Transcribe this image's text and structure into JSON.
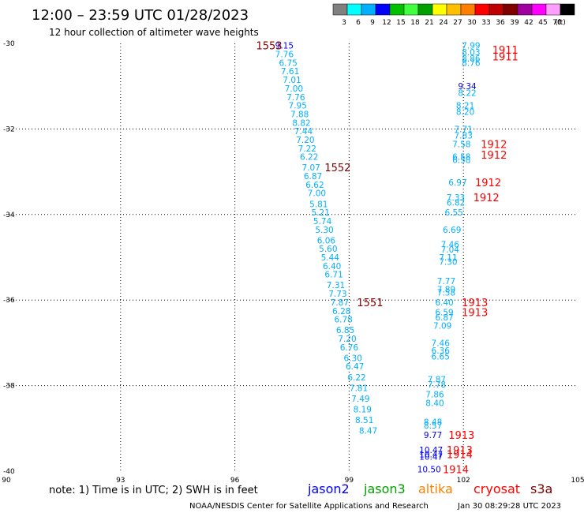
{
  "header": {
    "title": "12:00 – 23:59 UTC 01/28/2023",
    "subtitle": "12 hour collection of altimeter wave heights"
  },
  "colorbar": {
    "colors": [
      "#808080",
      "#00ffff",
      "#00b0ff",
      "#0000ff",
      "#00c000",
      "#40ff40",
      "#00a000",
      "#ffff00",
      "#ffc000",
      "#ff8000",
      "#ff0000",
      "#c00000",
      "#800000",
      "#a000a0",
      "#ff00ff",
      "#ffa0ff",
      "#000000"
    ],
    "labels": [
      "3",
      "6",
      "9",
      "12",
      "15",
      "18",
      "21",
      "24",
      "27",
      "30",
      "33",
      "36",
      "39",
      "42",
      "45",
      "70",
      "(ft)"
    ]
  },
  "footer": {
    "note": "note:  1) Time is in UTC; 2) SWH is in feet",
    "credit": "NOAA/NESDIS Center for Satellite Applications and Research",
    "timestamp": "Jan 30 08:29:28 UTC 2023"
  },
  "legend": [
    {
      "label": "jason2",
      "color": "#0000ff"
    },
    {
      "label": "jason3",
      "color": "#00a000"
    },
    {
      "label": "altika",
      "color": "#ff8000"
    },
    {
      "label": "cryosat",
      "color": "#ff0000"
    },
    {
      "label": "s3a",
      "color": "#800000"
    }
  ],
  "chart_data": {
    "type": "scatter",
    "xlim": [
      90,
      105
    ],
    "ylim": [
      -40,
      -30
    ],
    "x_ticks": [
      "90",
      "93",
      "96",
      "99",
      "102",
      "105"
    ],
    "y_ticks": [
      "-30",
      "-32",
      "-34",
      "-36",
      "-38",
      "-40"
    ],
    "x_tick_values": [
      90,
      93,
      96,
      99,
      102,
      105
    ],
    "y_tick_values": [
      -30,
      -32,
      -34,
      -36,
      -38,
      -40
    ],
    "grid": true,
    "value_colors": {
      "low": "#00b0ff",
      "mid": "#0000ff"
    },
    "points": [
      {
        "x": 97.3,
        "y": -30.05,
        "v": "9.15",
        "c": "#0000ff"
      },
      {
        "x": 97.3,
        "y": -30.25,
        "v": "7.76",
        "c": "#00b0ff"
      },
      {
        "x": 97.4,
        "y": -30.45,
        "v": "6.75",
        "c": "#00b0ff"
      },
      {
        "x": 97.45,
        "y": -30.65,
        "v": "7.61",
        "c": "#00b0ff"
      },
      {
        "x": 97.5,
        "y": -30.85,
        "v": "7.01",
        "c": "#00b0ff"
      },
      {
        "x": 97.55,
        "y": -31.05,
        "v": "7.00",
        "c": "#00b0ff"
      },
      {
        "x": 97.6,
        "y": -31.25,
        "v": "7.76",
        "c": "#00b0ff"
      },
      {
        "x": 97.65,
        "y": -31.45,
        "v": "7.95",
        "c": "#00b0ff"
      },
      {
        "x": 97.7,
        "y": -31.65,
        "v": "7.88",
        "c": "#00b0ff"
      },
      {
        "x": 97.75,
        "y": -31.85,
        "v": "8.82",
        "c": "#00b0ff"
      },
      {
        "x": 97.8,
        "y": -32.05,
        "v": "7.44",
        "c": "#00b0ff"
      },
      {
        "x": 97.85,
        "y": -32.25,
        "v": "7.20",
        "c": "#00b0ff"
      },
      {
        "x": 97.9,
        "y": -32.45,
        "v": "7.22",
        "c": "#00b0ff"
      },
      {
        "x": 97.95,
        "y": -32.65,
        "v": "6.22",
        "c": "#00b0ff"
      },
      {
        "x": 98.0,
        "y": -32.9,
        "v": "7.07",
        "c": "#00b0ff"
      },
      {
        "x": 98.05,
        "y": -33.1,
        "v": "6.87",
        "c": "#00b0ff"
      },
      {
        "x": 98.1,
        "y": -33.3,
        "v": "6.62",
        "c": "#00b0ff"
      },
      {
        "x": 98.15,
        "y": -33.5,
        "v": "7.00",
        "c": "#00b0ff"
      },
      {
        "x": 98.2,
        "y": -33.75,
        "v": "5.81",
        "c": "#00b0ff"
      },
      {
        "x": 98.25,
        "y": -33.95,
        "v": "5.21",
        "c": "#00b0ff"
      },
      {
        "x": 98.3,
        "y": -34.15,
        "v": "5.74",
        "c": "#00b0ff"
      },
      {
        "x": 98.35,
        "y": -34.35,
        "v": "5.30",
        "c": "#00b0ff"
      },
      {
        "x": 98.4,
        "y": -34.6,
        "v": "6.06",
        "c": "#00b0ff"
      },
      {
        "x": 98.45,
        "y": -34.8,
        "v": "5.60",
        "c": "#00b0ff"
      },
      {
        "x": 98.5,
        "y": -35.0,
        "v": "5.44",
        "c": "#00b0ff"
      },
      {
        "x": 98.55,
        "y": -35.2,
        "v": "6.40",
        "c": "#00b0ff"
      },
      {
        "x": 98.6,
        "y": -35.4,
        "v": "6.71",
        "c": "#00b0ff"
      },
      {
        "x": 98.65,
        "y": -35.65,
        "v": "7.31",
        "c": "#00b0ff"
      },
      {
        "x": 98.7,
        "y": -35.85,
        "v": "7.73",
        "c": "#00b0ff"
      },
      {
        "x": 98.75,
        "y": -36.05,
        "v": "7.87",
        "c": "#00b0ff"
      },
      {
        "x": 98.8,
        "y": -36.25,
        "v": "6.28",
        "c": "#00b0ff"
      },
      {
        "x": 98.85,
        "y": -36.45,
        "v": "6.78",
        "c": "#00b0ff"
      },
      {
        "x": 98.9,
        "y": -36.7,
        "v": "6.85",
        "c": "#00b0ff"
      },
      {
        "x": 98.95,
        "y": -36.9,
        "v": "7.20",
        "c": "#00b0ff"
      },
      {
        "x": 99.0,
        "y": -37.1,
        "v": "6.76",
        "c": "#00b0ff"
      },
      {
        "x": 99.1,
        "y": -37.35,
        "v": "6.30",
        "c": "#00b0ff"
      },
      {
        "x": 99.15,
        "y": -37.55,
        "v": "6.47",
        "c": "#00b0ff"
      },
      {
        "x": 99.2,
        "y": -37.8,
        "v": "6.22",
        "c": "#00b0ff"
      },
      {
        "x": 99.25,
        "y": -38.05,
        "v": "7.81",
        "c": "#00b0ff"
      },
      {
        "x": 99.3,
        "y": -38.3,
        "v": "7.49",
        "c": "#00b0ff"
      },
      {
        "x": 99.35,
        "y": -38.55,
        "v": "8.19",
        "c": "#00b0ff"
      },
      {
        "x": 99.4,
        "y": -38.8,
        "v": "8.51",
        "c": "#00b0ff"
      },
      {
        "x": 99.5,
        "y": -39.05,
        "v": "8.47",
        "c": "#00b0ff"
      },
      {
        "x": 102.2,
        "y": -30.05,
        "v": "7.99",
        "c": "#00b0ff"
      },
      {
        "x": 102.2,
        "y": -30.2,
        "v": "8.03",
        "c": "#00b0ff"
      },
      {
        "x": 102.2,
        "y": -30.35,
        "v": "8.86",
        "c": "#00b0ff"
      },
      {
        "x": 102.2,
        "y": -30.45,
        "v": "8.76",
        "c": "#00b0ff"
      },
      {
        "x": 102.1,
        "y": -31.0,
        "v": "9.34",
        "c": "#0000ff"
      },
      {
        "x": 102.1,
        "y": -31.15,
        "v": "8.22",
        "c": "#00b0ff"
      },
      {
        "x": 102.05,
        "y": -31.45,
        "v": "8.21",
        "c": "#00b0ff"
      },
      {
        "x": 102.05,
        "y": -31.6,
        "v": "8.20",
        "c": "#00b0ff"
      },
      {
        "x": 102.0,
        "y": -32.0,
        "v": "7.71",
        "c": "#00b0ff"
      },
      {
        "x": 102.0,
        "y": -32.15,
        "v": "7.83",
        "c": "#00b0ff"
      },
      {
        "x": 101.95,
        "y": -32.35,
        "v": "7.58",
        "c": "#00b0ff"
      },
      {
        "x": 101.95,
        "y": -32.65,
        "v": "6.58",
        "c": "#00b0ff"
      },
      {
        "x": 101.95,
        "y": -32.72,
        "v": "6.58",
        "c": "#00b0ff"
      },
      {
        "x": 101.85,
        "y": -33.25,
        "v": "6.97",
        "c": "#00b0ff"
      },
      {
        "x": 101.8,
        "y": -33.6,
        "v": "7.33",
        "c": "#00b0ff"
      },
      {
        "x": 101.8,
        "y": -33.72,
        "v": "6.82",
        "c": "#00b0ff"
      },
      {
        "x": 101.75,
        "y": -33.95,
        "v": "6.55",
        "c": "#00b0ff"
      },
      {
        "x": 101.7,
        "y": -34.35,
        "v": "6.69",
        "c": "#00b0ff"
      },
      {
        "x": 101.65,
        "y": -34.7,
        "v": "7.46",
        "c": "#00b0ff"
      },
      {
        "x": 101.65,
        "y": -34.82,
        "v": "7.04",
        "c": "#00b0ff"
      },
      {
        "x": 101.6,
        "y": -35.0,
        "v": "7.11",
        "c": "#00b0ff"
      },
      {
        "x": 101.6,
        "y": -35.1,
        "v": "7.30",
        "c": "#00b0ff"
      },
      {
        "x": 101.55,
        "y": -35.55,
        "v": "7.77",
        "c": "#00b0ff"
      },
      {
        "x": 101.55,
        "y": -35.75,
        "v": "7.89",
        "c": "#00b0ff"
      },
      {
        "x": 101.55,
        "y": -35.82,
        "v": "7.58",
        "c": "#00b0ff"
      },
      {
        "x": 101.5,
        "y": -36.05,
        "v": "6.40",
        "c": "#00b0ff"
      },
      {
        "x": 101.5,
        "y": -36.28,
        "v": "6.59",
        "c": "#00b0ff"
      },
      {
        "x": 101.5,
        "y": -36.4,
        "v": "6.87",
        "c": "#00b0ff"
      },
      {
        "x": 101.45,
        "y": -36.6,
        "v": "7.09",
        "c": "#00b0ff"
      },
      {
        "x": 101.4,
        "y": -37.0,
        "v": "7.46",
        "c": "#00b0ff"
      },
      {
        "x": 101.4,
        "y": -37.18,
        "v": "6.36",
        "c": "#00b0ff"
      },
      {
        "x": 101.4,
        "y": -37.32,
        "v": "6.65",
        "c": "#00b0ff"
      },
      {
        "x": 101.3,
        "y": -37.85,
        "v": "7.87",
        "c": "#00b0ff"
      },
      {
        "x": 101.3,
        "y": -37.97,
        "v": "7.78",
        "c": "#00b0ff"
      },
      {
        "x": 101.25,
        "y": -38.2,
        "v": "7.86",
        "c": "#00b0ff"
      },
      {
        "x": 101.25,
        "y": -38.4,
        "v": "8.40",
        "c": "#00b0ff"
      },
      {
        "x": 101.2,
        "y": -38.85,
        "v": "8.48",
        "c": "#00b0ff"
      },
      {
        "x": 101.2,
        "y": -38.93,
        "v": "8.57",
        "c": "#00b0ff"
      },
      {
        "x": 101.2,
        "y": -39.15,
        "v": "9.77",
        "c": "#0000ff"
      },
      {
        "x": 101.15,
        "y": -39.5,
        "v": "10.47",
        "c": "#0000ff"
      },
      {
        "x": 101.15,
        "y": -39.6,
        "v": "10.47",
        "c": "#0000ff"
      },
      {
        "x": 101.15,
        "y": -39.66,
        "v": "10.47",
        "c": "#0000ff"
      },
      {
        "x": 101.1,
        "y": -39.95,
        "v": "10.50",
        "c": "#0000ff"
      }
    ],
    "pass_labels": [
      {
        "x": 96.9,
        "y": -30.05,
        "t": "1553",
        "c": "#800000"
      },
      {
        "x": 98.7,
        "y": -32.9,
        "t": "1552",
        "c": "#800000"
      },
      {
        "x": 99.55,
        "y": -36.05,
        "t": "1551",
        "c": "#800000"
      },
      {
        "x": 103.1,
        "y": -30.15,
        "t": "1911",
        "c": "#ff0000"
      },
      {
        "x": 103.1,
        "y": -30.3,
        "t": "1911",
        "c": "#ff0000"
      },
      {
        "x": 102.8,
        "y": -32.35,
        "t": "1912",
        "c": "#ff0000"
      },
      {
        "x": 102.8,
        "y": -32.6,
        "t": "1912",
        "c": "#ff0000"
      },
      {
        "x": 102.65,
        "y": -33.25,
        "t": "1912",
        "c": "#ff0000"
      },
      {
        "x": 102.6,
        "y": -33.6,
        "t": "1912",
        "c": "#ff0000"
      },
      {
        "x": 102.3,
        "y": -36.05,
        "t": "1913",
        "c": "#ff0000"
      },
      {
        "x": 102.3,
        "y": -36.28,
        "t": "1913",
        "c": "#ff0000"
      },
      {
        "x": 101.95,
        "y": -39.15,
        "t": "1913",
        "c": "#ff0000"
      },
      {
        "x": 101.9,
        "y": -39.5,
        "t": "1913",
        "c": "#ff0000"
      },
      {
        "x": 101.9,
        "y": -39.6,
        "t": "1914",
        "c": "#ff0000"
      },
      {
        "x": 101.8,
        "y": -39.95,
        "t": "1914",
        "c": "#ff0000"
      }
    ]
  }
}
